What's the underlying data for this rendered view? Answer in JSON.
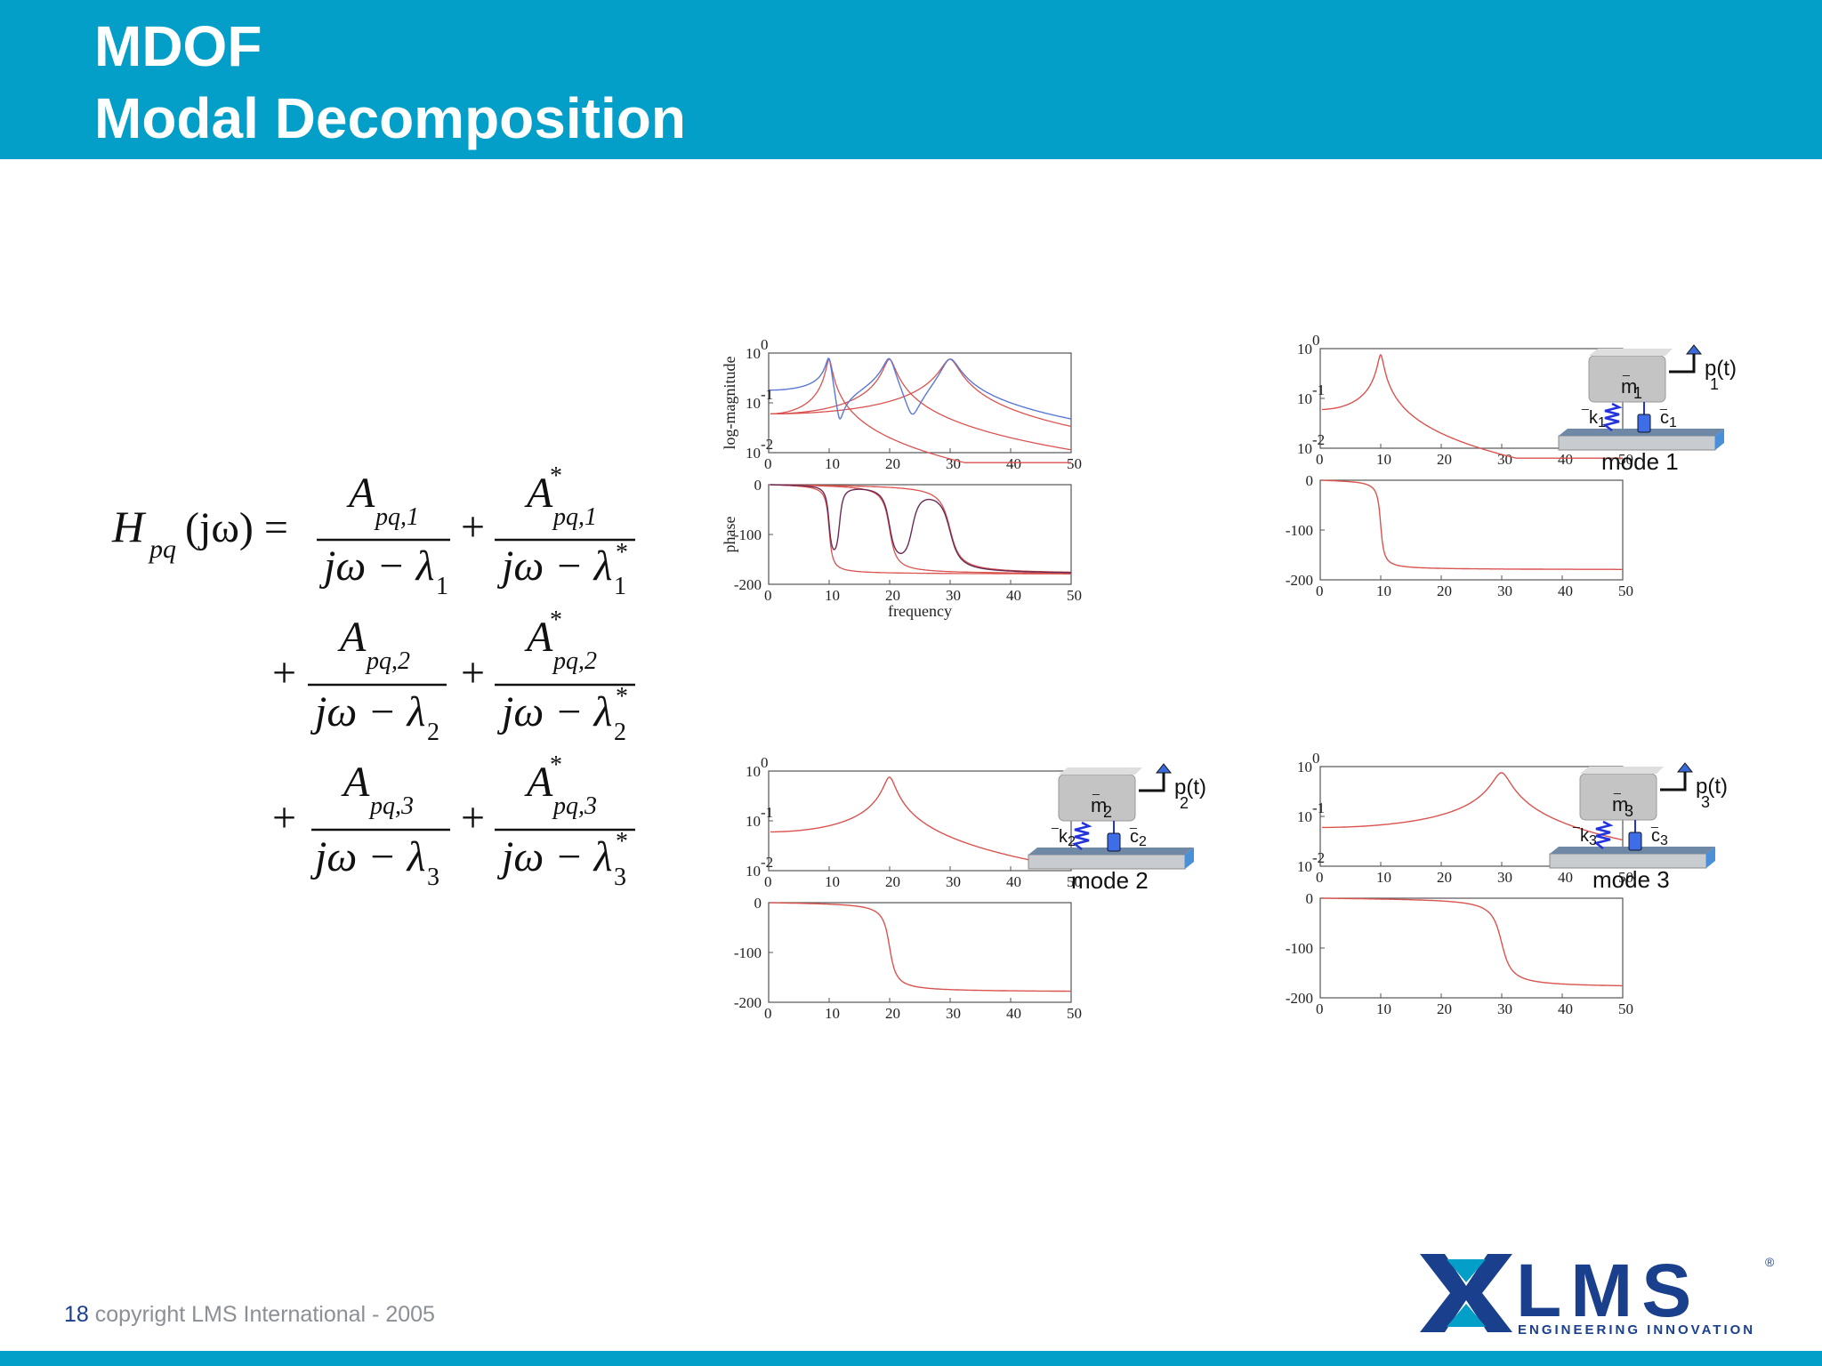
{
  "header": {
    "title_line1": "MDOF",
    "title_line2": "Modal Decomposition"
  },
  "footer": {
    "page_number": "18",
    "copyright": "copyright LMS International - 2005"
  },
  "logo": {
    "name": "LMS",
    "tagline": "ENGINEERING INNOVATION",
    "registered_mark": "®",
    "colors": {
      "dark_blue": "#1a3f8c",
      "light_blue": "#049fc8"
    }
  },
  "formula": {
    "lhs_main": "H",
    "lhs_sub": "pq",
    "lhs_arg": "(jω) =",
    "numerator": "A",
    "num_sub": [
      "pq,1",
      "pq,2",
      "pq,3"
    ],
    "star": "*",
    "den_prefix": "jω − λ",
    "den_sub": [
      "1",
      "2",
      "3"
    ],
    "plus": "+"
  },
  "colors": {
    "header_bar": "#049fc8",
    "curve_red": "#d9534f",
    "curve_blue": "#5a78d6",
    "curve_dark": "#6b2a55"
  },
  "chart_data": [
    {
      "id": "sum",
      "type": "line",
      "panels": [
        "magnitude",
        "phase"
      ],
      "ylabel_magnitude": "log-magnitude",
      "ylabel_phase": "phase",
      "xlabel": "frequency",
      "x_ticks": [
        "0",
        "10",
        "20",
        "30",
        "40",
        "50"
      ],
      "mag_ticks": [
        "10",
        "10",
        "10"
      ],
      "mag_exponents": [
        "0",
        "-1",
        "-2"
      ],
      "phase_ticks": [
        "0",
        "-100",
        "-200"
      ],
      "xlim": [
        0,
        50
      ],
      "mag_ylim_log10": [
        -2,
        0
      ],
      "phase_ylim": [
        -200,
        0
      ],
      "modes": [
        10,
        20,
        30
      ]
    },
    {
      "id": "mode1",
      "type": "line",
      "mode_freq": 10,
      "x_ticks": [
        "0",
        "10",
        "20",
        "30",
        "40",
        "50"
      ],
      "mag_ticks": [
        "10",
        "10",
        "10"
      ],
      "mag_exponents": [
        "0",
        "-1",
        "-2"
      ],
      "phase_ticks": [
        "0",
        "-100",
        "-200"
      ],
      "schematic": {
        "mass": "m",
        "spring": "k",
        "damper": "c",
        "force": "p(t)",
        "index": "1",
        "label": "mode 1"
      }
    },
    {
      "id": "mode2",
      "type": "line",
      "mode_freq": 20,
      "x_ticks": [
        "0",
        "10",
        "20",
        "30",
        "40",
        "50"
      ],
      "mag_ticks": [
        "10",
        "10",
        "10"
      ],
      "mag_exponents": [
        "0",
        "-1",
        "-2"
      ],
      "phase_ticks": [
        "0",
        "-100",
        "-200"
      ],
      "schematic": {
        "mass": "m",
        "spring": "k",
        "damper": "c",
        "force": "p(t)",
        "index": "2",
        "label": "mode 2"
      }
    },
    {
      "id": "mode3",
      "type": "line",
      "mode_freq": 30,
      "x_ticks": [
        "0",
        "10",
        "20",
        "30",
        "40",
        "50"
      ],
      "mag_ticks": [
        "10",
        "10",
        "10"
      ],
      "mag_exponents": [
        "0",
        "-1",
        "-2"
      ],
      "phase_ticks": [
        "0",
        "-100",
        "-200"
      ],
      "schematic": {
        "mass": "m",
        "spring": "k",
        "damper": "c",
        "force": "p(t)",
        "index": "3",
        "label": "mode 3"
      }
    }
  ]
}
